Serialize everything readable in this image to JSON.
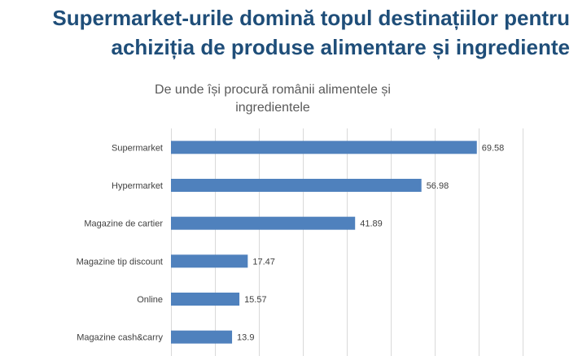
{
  "headline": {
    "line1": "Supermarket-urile domină topul destinațiilor pentru",
    "line2": "achiziția de produse alimentare și ingrediente"
  },
  "chart_data": {
    "type": "bar",
    "orientation": "horizontal",
    "title_lines": [
      "De unde își procură românii alimentele și",
      "ingredientele"
    ],
    "categories": [
      "Supermarket",
      "Hypermarket",
      "Magazine de cartier",
      "Magazine tip discount",
      "Online",
      "Magazine cash&carry"
    ],
    "values": [
      69.58,
      56.98,
      41.89,
      17.47,
      15.57,
      13.9
    ],
    "value_labels": [
      "69.58",
      "56.98",
      "41.89",
      "17.47",
      "15.57",
      "13.9"
    ],
    "xlim": [
      0,
      80
    ],
    "x_gridline_step": 10,
    "grid": true,
    "bar_color": "#4F81BD",
    "headline_color": "#1F4E79"
  }
}
